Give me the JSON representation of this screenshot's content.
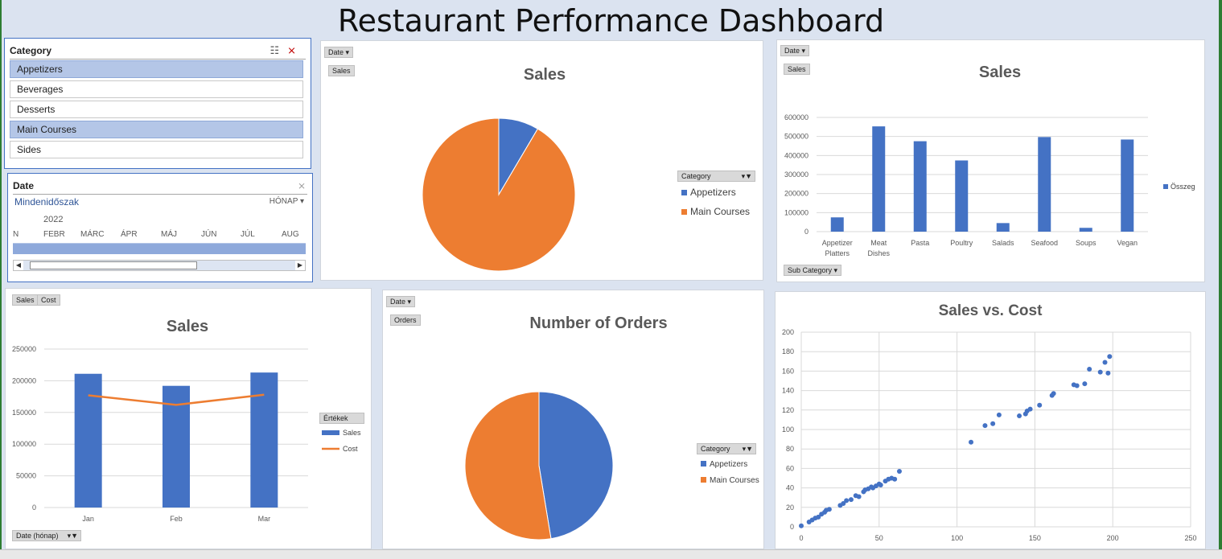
{
  "title": "Restaurant Performance Dashboard",
  "category_slicer": {
    "header": "Category",
    "items": [
      {
        "label": "Appetizers",
        "selected": true
      },
      {
        "label": "Beverages",
        "selected": false
      },
      {
        "label": "Desserts",
        "selected": false
      },
      {
        "label": "Main Courses",
        "selected": true
      },
      {
        "label": "Sides",
        "selected": false
      }
    ]
  },
  "date_timeline": {
    "header": "Date",
    "period": "Mindenidőszak",
    "unit": "HÓNAP",
    "year": "2022",
    "months": [
      "N",
      "FEBR",
      "MÁRC",
      "ÁPR",
      "MÁJ",
      "JÚN",
      "JÚL",
      "AUG"
    ]
  },
  "pie_sales": {
    "date_button": "Date",
    "values_button": "Sales",
    "legend_header": "Category",
    "chart_data": {
      "type": "pie",
      "title": "Sales",
      "labels": [
        "Appetizers",
        "Main Courses"
      ],
      "values": [
        8.5,
        91.5
      ],
      "colors": [
        "#4472c4",
        "#ed7d31"
      ]
    }
  },
  "bar_sales": {
    "date_button": "Date",
    "values_button": "Sales",
    "axis_button": "Sub Category",
    "chart_data": {
      "type": "bar",
      "title": "Sales",
      "categories": [
        [
          "Appetizer",
          "Platters"
        ],
        [
          "Meat",
          "Dishes"
        ],
        [
          "Pasta"
        ],
        [
          "Poultry"
        ],
        [
          "Salads"
        ],
        [
          "Seafood"
        ],
        [
          "Soups"
        ],
        [
          "Vegan"
        ]
      ],
      "series": [
        {
          "name": "Összeg",
          "values": [
            75000,
            553000,
            475000,
            374000,
            45000,
            497000,
            20000,
            484000
          ],
          "color": "#4472c4"
        }
      ],
      "ylim": [
        0,
        600000
      ],
      "yticks": [
        "0",
        "100000",
        "200000",
        "300000",
        "400000",
        "500000",
        "600000"
      ]
    }
  },
  "combo_sales": {
    "buttons": [
      "Sales",
      "Cost"
    ],
    "axis_button": "Date (hónap)",
    "legend_header": "Értékek",
    "chart_data": {
      "type": "bar",
      "title": "Sales",
      "categories": [
        "Jan",
        "Feb",
        "Mar"
      ],
      "series": [
        {
          "name": "Sales",
          "type": "bar",
          "values": [
            211000,
            192000,
            213000
          ],
          "color": "#4472c4"
        },
        {
          "name": "Cost",
          "type": "line",
          "values": [
            177000,
            162000,
            178000
          ],
          "color": "#ed7d31"
        }
      ],
      "ylim": [
        0,
        250000
      ],
      "yticks": [
        "0",
        "50000",
        "100000",
        "150000",
        "200000",
        "250000"
      ]
    }
  },
  "pie_orders": {
    "date_button": "Date",
    "values_button": "Orders",
    "legend_header": "Category",
    "chart_data": {
      "type": "pie",
      "title": "Number of Orders",
      "labels": [
        "Appetizers",
        "Main Courses"
      ],
      "values": [
        47.4,
        52.6
      ],
      "colors": [
        "#4472c4",
        "#ed7d31"
      ]
    }
  },
  "scatter": {
    "chart_data": {
      "type": "scatter",
      "title": "Sales vs. Cost",
      "xlim": [
        0,
        250
      ],
      "ylim": [
        0,
        200
      ],
      "xticks": [
        "0",
        "50",
        "100",
        "150",
        "200",
        "250"
      ],
      "yticks": [
        "0",
        "20",
        "40",
        "60",
        "80",
        "100",
        "120",
        "140",
        "160",
        "180",
        "200"
      ],
      "color": "#4472c4",
      "points": [
        [
          0,
          1
        ],
        [
          5,
          5
        ],
        [
          7,
          7
        ],
        [
          9,
          9
        ],
        [
          11,
          10
        ],
        [
          13,
          13
        ],
        [
          15,
          15
        ],
        [
          16,
          17
        ],
        [
          18,
          18
        ],
        [
          25,
          22
        ],
        [
          27,
          24
        ],
        [
          29,
          27
        ],
        [
          32,
          28
        ],
        [
          35,
          32
        ],
        [
          37,
          31
        ],
        [
          40,
          36
        ],
        [
          41,
          38
        ],
        [
          43,
          39
        ],
        [
          45,
          41
        ],
        [
          46,
          40
        ],
        [
          48,
          42
        ],
        [
          50,
          44
        ],
        [
          51,
          43
        ],
        [
          54,
          47
        ],
        [
          56,
          49
        ],
        [
          58,
          50
        ],
        [
          60,
          49
        ],
        [
          63,
          57
        ],
        [
          109,
          87
        ],
        [
          118,
          104
        ],
        [
          123,
          106
        ],
        [
          127,
          115
        ],
        [
          140,
          114
        ],
        [
          144,
          116
        ],
        [
          145,
          119
        ],
        [
          147,
          121
        ],
        [
          153,
          125
        ],
        [
          161,
          135
        ],
        [
          162,
          137
        ],
        [
          175,
          146
        ],
        [
          177,
          145
        ],
        [
          182,
          147
        ],
        [
          185,
          162
        ],
        [
          192,
          159
        ],
        [
          195,
          169
        ],
        [
          197,
          158
        ],
        [
          198,
          175
        ]
      ]
    }
  }
}
